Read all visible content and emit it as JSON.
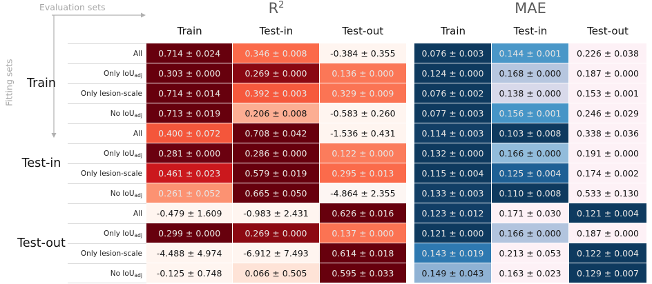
{
  "annotations": {
    "evaluation_axis": "Evaluation sets",
    "fitting_axis": "Fitting sets"
  },
  "fitting_groups": [
    {
      "label": "Train"
    },
    {
      "label": "Test-in"
    },
    {
      "label": "Test-out"
    }
  ],
  "row_labels": [
    {
      "main": "All",
      "sub": ""
    },
    {
      "main": "Only IoU",
      "sub": "adj"
    },
    {
      "main": "Only lesion-scale",
      "sub": ""
    },
    {
      "main": "No IoU",
      "sub": "adj"
    }
  ],
  "palette": {
    "light_text": "#e8e6e4",
    "dark_text": "#141414",
    "grid_line": "#ffffff",
    "label_line": "#d9d9d9",
    "muted_gray": "#a6a6a6",
    "title_gray": "#595959",
    "red_dark": "#67000d",
    "blue_dark": "#0e3a5f"
  },
  "chart_data": [
    {
      "type": "heatmap",
      "title": "R²",
      "title_main": "R",
      "title_sup": "2",
      "columns": [
        "Train",
        "Test-in",
        "Test-out"
      ],
      "row_groups": [
        "Train",
        "Test-in",
        "Test-out"
      ],
      "rows_per_group": [
        "All",
        "Only IoU_adj",
        "Only lesion-scale",
        "No IoU_adj"
      ],
      "values": [
        [
          0.714,
          0.346,
          -0.384
        ],
        [
          0.303,
          0.269,
          0.136
        ],
        [
          0.714,
          0.392,
          0.329
        ],
        [
          0.713,
          0.206,
          -0.583
        ],
        [
          0.4,
          0.708,
          -1.536
        ],
        [
          0.281,
          0.286,
          0.122
        ],
        [
          0.461,
          0.579,
          0.295
        ],
        [
          0.261,
          0.665,
          -4.864
        ],
        [
          -0.479,
          -0.983,
          0.626
        ],
        [
          0.299,
          0.269,
          0.137
        ],
        [
          -4.488,
          -6.912,
          0.614
        ],
        [
          -0.125,
          0.066,
          0.595
        ]
      ],
      "errors": [
        [
          0.024,
          0.008,
          0.355
        ],
        [
          0.0,
          0.0,
          0.0
        ],
        [
          0.014,
          0.003,
          0.009
        ],
        [
          0.019,
          0.008,
          0.26
        ],
        [
          0.072,
          0.042,
          0.431
        ],
        [
          0.0,
          0.0,
          0.0
        ],
        [
          0.023,
          0.019,
          0.013
        ],
        [
          0.052,
          0.05,
          2.355
        ],
        [
          1.609,
          2.431,
          0.016
        ],
        [
          0.0,
          0.0,
          0.0
        ],
        [
          4.974,
          7.493,
          0.018
        ],
        [
          0.748,
          0.505,
          0.033
        ]
      ],
      "cell_colors": [
        [
          "#67000d",
          "#fb6a4a",
          "#fff5f0"
        ],
        [
          "#67000d",
          "#8a0812",
          "#fb7757"
        ],
        [
          "#67000d",
          "#f6593d",
          "#fb7454"
        ],
        [
          "#67000d",
          "#fcae93",
          "#fff5f0"
        ],
        [
          "#f4563b",
          "#67000d",
          "#fff5f0"
        ],
        [
          "#6b0110",
          "#67000d",
          "#fb7c5c"
        ],
        [
          "#cb181d",
          "#67000d",
          "#fb6b4b"
        ],
        [
          "#fc9272",
          "#67000d",
          "#fdf6f3"
        ],
        [
          "#fff5f0",
          "#fff5f0",
          "#67000d"
        ],
        [
          "#67000d",
          "#8c0912",
          "#fb7353"
        ],
        [
          "#fff5f0",
          "#fff5f0",
          "#67000d"
        ],
        [
          "#fff5f0",
          "#fee3d7",
          "#67000d"
        ]
      ],
      "cell_text": [
        [
          "L",
          "L",
          "D"
        ],
        [
          "L",
          "L",
          "L"
        ],
        [
          "L",
          "L",
          "L"
        ],
        [
          "L",
          "D",
          "D"
        ],
        [
          "L",
          "L",
          "D"
        ],
        [
          "L",
          "L",
          "L"
        ],
        [
          "L",
          "L",
          "L"
        ],
        [
          "L",
          "L",
          "D"
        ],
        [
          "D",
          "D",
          "L"
        ],
        [
          "L",
          "L",
          "L"
        ],
        [
          "D",
          "D",
          "L"
        ],
        [
          "D",
          "D",
          "L"
        ]
      ]
    },
    {
      "type": "heatmap",
      "title": "MAE",
      "title_main": "MAE",
      "title_sup": "",
      "columns": [
        "Train",
        "Test-in",
        "Test-out"
      ],
      "row_groups": [
        "Train",
        "Test-in",
        "Test-out"
      ],
      "rows_per_group": [
        "All",
        "Only IoU_adj",
        "Only lesion-scale",
        "No IoU_adj"
      ],
      "values": [
        [
          0.076,
          0.144,
          0.226
        ],
        [
          0.124,
          0.168,
          0.187
        ],
        [
          0.076,
          0.138,
          0.153
        ],
        [
          0.077,
          0.156,
          0.246
        ],
        [
          0.114,
          0.103,
          0.338
        ],
        [
          0.132,
          0.166,
          0.191
        ],
        [
          0.115,
          0.125,
          0.174
        ],
        [
          0.133,
          0.11,
          0.533
        ],
        [
          0.123,
          0.171,
          0.121
        ],
        [
          0.121,
          0.166,
          0.187
        ],
        [
          0.143,
          0.213,
          0.122
        ],
        [
          0.149,
          0.163,
          0.129
        ]
      ],
      "errors": [
        [
          0.003,
          0.001,
          0.038
        ],
        [
          0.0,
          0.0,
          0.0
        ],
        [
          0.002,
          0.0,
          0.001
        ],
        [
          0.003,
          0.001,
          0.029
        ],
        [
          0.003,
          0.008,
          0.036
        ],
        [
          0.0,
          0.0,
          0.0
        ],
        [
          0.004,
          0.004,
          0.002
        ],
        [
          0.003,
          0.008,
          0.13
        ],
        [
          0.012,
          0.03,
          0.004
        ],
        [
          0.0,
          0.0,
          0.0
        ],
        [
          0.019,
          0.053,
          0.004
        ],
        [
          0.043,
          0.023,
          0.007
        ]
      ],
      "cell_colors": [
        [
          "#0e3a5f",
          "#4a97c8",
          "#fdf1f6"
        ],
        [
          "#0e3a5f",
          "#b6c6df",
          "#fdf1f6"
        ],
        [
          "#0e3a5f",
          "#d8d9ea",
          "#fdf1f6"
        ],
        [
          "#0e3a5f",
          "#4695c7",
          "#fdf1f6"
        ],
        [
          "#123f66",
          "#0e3a5f",
          "#fdf1f6"
        ],
        [
          "#0e3a5f",
          "#92bcdb",
          "#fdf1f6"
        ],
        [
          "#0e3a5f",
          "#1e6095",
          "#fdf1f6"
        ],
        [
          "#123f66",
          "#0e3a5f",
          "#fdf1f6"
        ],
        [
          "#113e66",
          "#fdf1f6",
          "#0e3a5f"
        ],
        [
          "#0e3a5f",
          "#b2c4de",
          "#fdf1f6"
        ],
        [
          "#2e79b1",
          "#fdf1f6",
          "#0e3a5f"
        ],
        [
          "#8fb2d4",
          "#fdf1f6",
          "#0e3a5f"
        ]
      ],
      "cell_text": [
        [
          "L",
          "L",
          "D"
        ],
        [
          "L",
          "D",
          "D"
        ],
        [
          "L",
          "D",
          "D"
        ],
        [
          "L",
          "L",
          "D"
        ],
        [
          "L",
          "L",
          "D"
        ],
        [
          "L",
          "D",
          "D"
        ],
        [
          "L",
          "L",
          "D"
        ],
        [
          "L",
          "L",
          "D"
        ],
        [
          "L",
          "D",
          "L"
        ],
        [
          "L",
          "D",
          "D"
        ],
        [
          "L",
          "D",
          "L"
        ],
        [
          "D",
          "D",
          "L"
        ]
      ]
    }
  ]
}
